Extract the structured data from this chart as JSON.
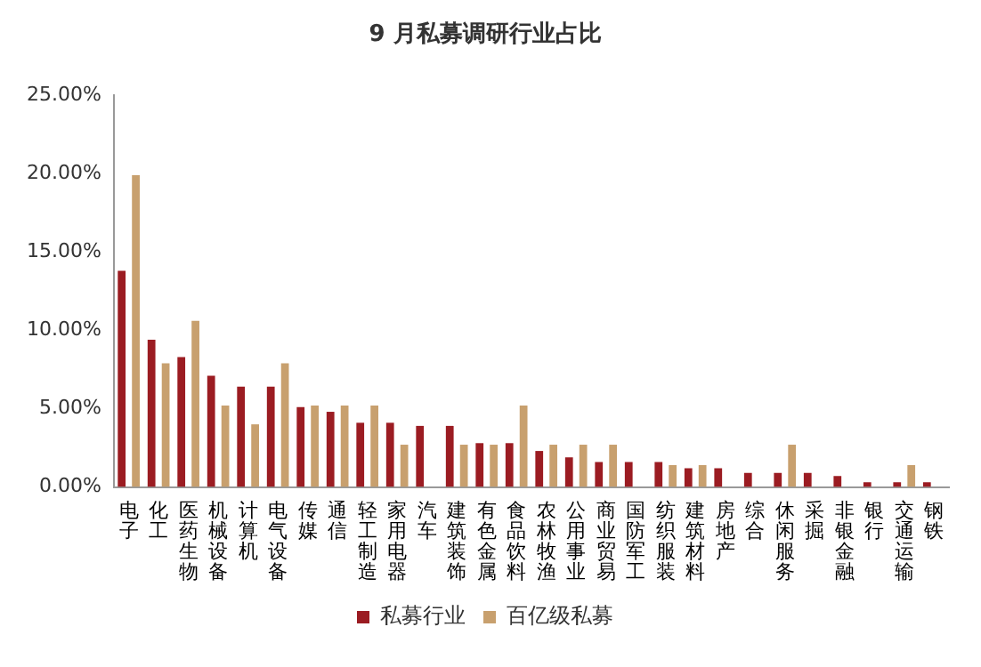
{
  "chart_data": {
    "type": "bar",
    "title": "9 月私募调研行业占比",
    "categories": [
      "电子",
      "化工",
      "医药生物",
      "机械设备",
      "计算机",
      "电气设备",
      "传媒",
      "通信",
      "轻工制造",
      "家用电器",
      "汽车",
      "建筑装饰",
      "有色金属",
      "食品饮料",
      "农林牧渔",
      "公用事业",
      "商业贸易",
      "国防军工",
      "纺织服装",
      "建筑材料",
      "房地产",
      "综合",
      "休闲服务",
      "采掘",
      "非银金融",
      "银行",
      "交通运输",
      "钢铁"
    ],
    "series": [
      {
        "name": "私募行业",
        "color": "#9b1c22",
        "values": [
          13.8,
          9.4,
          8.3,
          7.1,
          6.4,
          6.4,
          5.1,
          4.8,
          4.1,
          4.1,
          3.9,
          3.9,
          2.8,
          2.8,
          2.3,
          1.9,
          1.6,
          1.6,
          1.6,
          1.2,
          1.2,
          0.9,
          0.9,
          0.9,
          0.7,
          0.3,
          0.3,
          0.3
        ]
      },
      {
        "name": "百亿级私募",
        "color": "#c8a06e",
        "values": [
          19.9,
          7.9,
          10.6,
          5.2,
          4.0,
          7.9,
          5.2,
          5.2,
          5.2,
          2.7,
          0,
          2.7,
          2.7,
          5.2,
          2.7,
          2.7,
          2.7,
          0,
          1.4,
          1.4,
          0,
          0,
          2.7,
          0,
          0,
          0,
          1.4,
          0
        ]
      }
    ],
    "ylim": [
      0,
      25
    ],
    "yticks": [
      {
        "value": 0,
        "label": "0.00%"
      },
      {
        "value": 5,
        "label": "5.00%"
      },
      {
        "value": 10,
        "label": "10.00%"
      },
      {
        "value": 15,
        "label": "15.00%"
      },
      {
        "value": 20,
        "label": "20.00%"
      },
      {
        "value": 25,
        "label": "25.00%"
      }
    ],
    "grid": false,
    "legend": "bottom"
  }
}
